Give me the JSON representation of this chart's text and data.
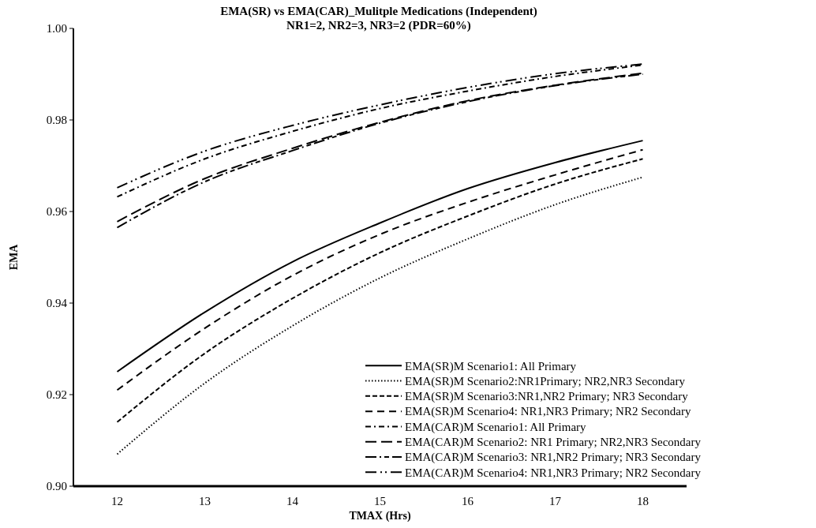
{
  "chart_data": {
    "type": "line",
    "title": "EMA(SR) vs EMA(CAR)_Mulitple Medications (Independent)",
    "subtitle": "NR1=2, NR2=3, NR3=2 (PDR=60%)",
    "xlabel": "TMAX (Hrs)",
    "ylabel": "EMA",
    "x": [
      12,
      13,
      14,
      15,
      16,
      17,
      18
    ],
    "xlim": [
      11.5,
      18.5
    ],
    "xticks": [
      12,
      13,
      14,
      15,
      16,
      17,
      18
    ],
    "ylim": [
      0.9,
      1.0
    ],
    "yticks": [
      {
        "value": 0.9,
        "label": "0.90"
      },
      0.92,
      0.94,
      0.96,
      0.98,
      {
        "value": 1.0,
        "label": "1.00"
      }
    ],
    "grid": false,
    "legend": "bottom right",
    "marker": "none",
    "series": [
      {
        "name": "EMA(SR)M Scenario1: All Primary",
        "color": "#000000",
        "line_style": "solid",
        "values": [
          0.925,
          0.938,
          0.949,
          0.9575,
          0.965,
          0.9707,
          0.9755
        ]
      },
      {
        "name": "EMA(SR)M Scenario2:NR1Primary; NR2,NR3 Secondary",
        "color": "#000000",
        "line_style": "dotted",
        "values": [
          0.907,
          0.9225,
          0.935,
          0.9455,
          0.954,
          0.9615,
          0.9675
        ]
      },
      {
        "name": "EMA(SR)M Scenario3:NR1,NR2 Primary; NR3 Secondary",
        "color": "#000000",
        "line_style": "dashed",
        "values": [
          0.914,
          0.929,
          0.941,
          0.951,
          0.959,
          0.966,
          0.9715
        ]
      },
      {
        "name": "EMA(SR)M Scenario4: NR1,NR3 Primary; NR2 Secondary",
        "color": "#000000",
        "line_style": "longdash",
        "values": [
          0.921,
          0.9345,
          0.946,
          0.955,
          0.962,
          0.968,
          0.9735
        ]
      },
      {
        "name": "EMA(CAR)M Scenario1: All Primary",
        "color": "#000000",
        "line_style": "dashdot",
        "values": [
          0.9632,
          0.9715,
          0.9775,
          0.9825,
          0.9863,
          0.9895,
          0.992
        ]
      },
      {
        "name": "EMA(CAR)M Scenario2: NR1 Primary; NR2,NR3 Secondary",
        "color": "#000000",
        "line_style": "longdash2",
        "values": [
          0.9578,
          0.9672,
          0.9738,
          0.9795,
          0.9842,
          0.9876,
          0.9902
        ]
      },
      {
        "name": "EMA(CAR)M Scenario3: NR1,NR2 Primary; NR3 Secondary",
        "color": "#000000",
        "line_style": "longdashdot",
        "values": [
          0.9565,
          0.9665,
          0.9733,
          0.9793,
          0.984,
          0.9875,
          0.99
        ]
      },
      {
        "name": "EMA(CAR)M Scenario4: NR1,NR3 Primary; NR2 Secondary",
        "color": "#000000",
        "line_style": "longdashdotdot",
        "values": [
          0.9652,
          0.9732,
          0.9788,
          0.9833,
          0.9871,
          0.9901,
          0.9922
        ]
      }
    ]
  }
}
